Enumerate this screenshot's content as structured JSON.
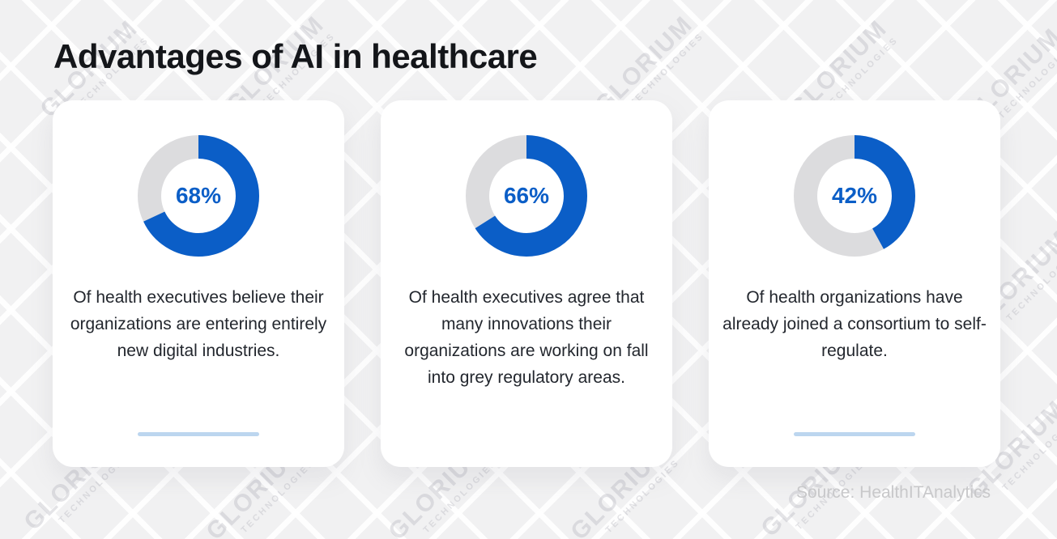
{
  "page": {
    "title": "Advantages of AI in healthcare",
    "source": "Source: HealthITAnalytics",
    "watermark": {
      "line1": "GLORIUM",
      "line2": "TECHNOLOGIES"
    },
    "colors": {
      "accent_blue": "#0b5ec7",
      "track_gray": "#dcdcde",
      "underline_blue": "#bcd6ef",
      "background": "#f1f1f2",
      "card": "#ffffff"
    }
  },
  "chart_data": {
    "type": "pie",
    "subtype": "donut",
    "title": "Advantages of AI in healthcare",
    "legend": false,
    "unit": "%",
    "charts": [
      {
        "label": "68%",
        "value": 68,
        "description": "Of health executives believe their organizations are entering entirely new digital industries.",
        "has_underline": true
      },
      {
        "label": "66%",
        "value": 66,
        "description": "Of health executives agree that many innovations their organizations are working on fall into grey regulatory areas.",
        "has_underline": false
      },
      {
        "label": "42%",
        "value": 42,
        "description": "Of health organizations have already joined a consortium to self-regulate.",
        "has_underline": true
      }
    ]
  }
}
